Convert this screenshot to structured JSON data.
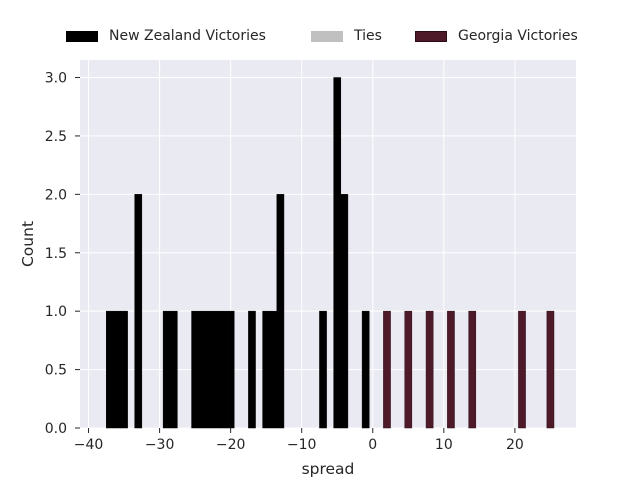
{
  "chart_data": {
    "type": "bar",
    "xlabel": "spread",
    "ylabel": "Count",
    "xlim": [
      -41.2,
      28.6
    ],
    "ylim": [
      0,
      3.15
    ],
    "xticks": [
      -40,
      -30,
      -20,
      -10,
      0,
      10,
      20
    ],
    "xtick_labels": [
      "−40",
      "−30",
      "−20",
      "−10",
      "0",
      "10",
      "20"
    ],
    "yticks": [
      0,
      0.5,
      1.0,
      1.5,
      2.0,
      2.5,
      3.0
    ],
    "ytick_labels": [
      "0.0",
      "0.5",
      "1.0",
      "1.5",
      "2.0",
      "2.5",
      "3.0"
    ],
    "grid": true,
    "legend_position": "top",
    "bar_width": 1,
    "series": [
      {
        "name": "New Zealand Victories",
        "color": "#000000",
        "bars": [
          {
            "x": -37,
            "count": 1
          },
          {
            "x": -36,
            "count": 1
          },
          {
            "x": -35,
            "count": 1
          },
          {
            "x": -33,
            "count": 2
          },
          {
            "x": -29,
            "count": 1
          },
          {
            "x": -28,
            "count": 1
          },
          {
            "x": -25,
            "count": 1
          },
          {
            "x": -24,
            "count": 1
          },
          {
            "x": -23,
            "count": 1
          },
          {
            "x": -22,
            "count": 1
          },
          {
            "x": -21,
            "count": 1
          },
          {
            "x": -20,
            "count": 1
          },
          {
            "x": -17,
            "count": 1
          },
          {
            "x": -15,
            "count": 1
          },
          {
            "x": -14,
            "count": 1
          },
          {
            "x": -13,
            "count": 2
          },
          {
            "x": -7,
            "count": 1
          },
          {
            "x": -5,
            "count": 3
          },
          {
            "x": -4,
            "count": 2
          },
          {
            "x": -1,
            "count": 1
          }
        ]
      },
      {
        "name": "Ties",
        "color": "#c0c0c0",
        "bars": []
      },
      {
        "name": "Georgia Victories",
        "color": "#4e1a2a",
        "bars": [
          {
            "x": 2,
            "count": 1
          },
          {
            "x": 5,
            "count": 1
          },
          {
            "x": 8,
            "count": 1
          },
          {
            "x": 11,
            "count": 1
          },
          {
            "x": 14,
            "count": 1
          },
          {
            "x": 21,
            "count": 1
          },
          {
            "x": 25,
            "count": 1
          }
        ]
      }
    ]
  }
}
